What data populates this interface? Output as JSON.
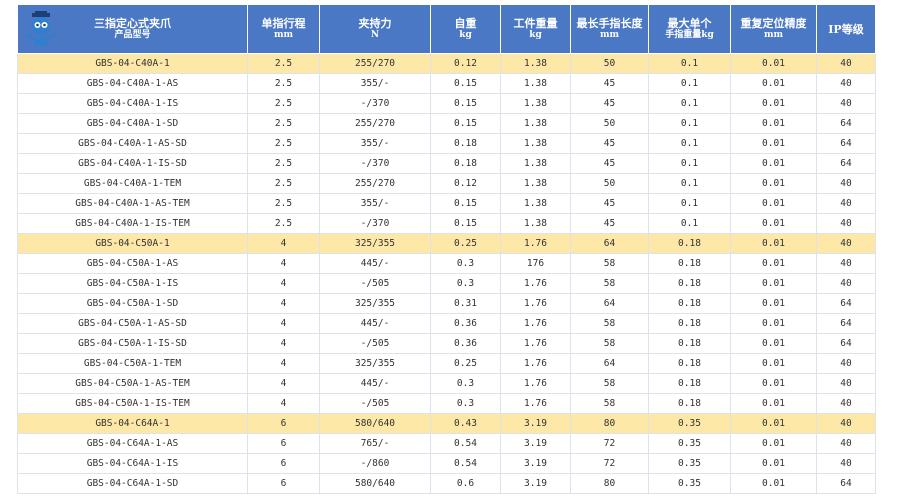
{
  "header": {
    "columns": [
      {
        "title": "三指定心式夹爪",
        "sub": "产品型号"
      },
      {
        "title": "单指行程",
        "sub": "mm"
      },
      {
        "title": "夹持力",
        "sub": "N"
      },
      {
        "title": "自重",
        "sub": "kg"
      },
      {
        "title": "工件重量",
        "sub": "kg"
      },
      {
        "title": "最长手指长度",
        "sub": "mm"
      },
      {
        "title": "最大单个",
        "sub": "手指重量kg"
      },
      {
        "title": "重复定位精度",
        "sub": "mm"
      },
      {
        "title": "IP等级",
        "sub": ""
      }
    ]
  },
  "rows": [
    {
      "hl": true,
      "cells": [
        "GBS-04-C40A-1",
        "2.5",
        "255/270",
        "0.12",
        "1.38",
        "50",
        "0.1",
        "0.01",
        "40"
      ]
    },
    {
      "hl": false,
      "cells": [
        "GBS-04-C40A-1-AS",
        "2.5",
        "355/-",
        "0.15",
        "1.38",
        "45",
        "0.1",
        "0.01",
        "40"
      ]
    },
    {
      "hl": false,
      "cells": [
        "GBS-04-C40A-1-IS",
        "2.5",
        "-/370",
        "0.15",
        "1.38",
        "45",
        "0.1",
        "0.01",
        "40"
      ]
    },
    {
      "hl": false,
      "cells": [
        "GBS-04-C40A-1-SD",
        "2.5",
        "255/270",
        "0.15",
        "1.38",
        "50",
        "0.1",
        "0.01",
        "64"
      ]
    },
    {
      "hl": false,
      "cells": [
        "GBS-04-C40A-1-AS-SD",
        "2.5",
        "355/-",
        "0.18",
        "1.38",
        "45",
        "0.1",
        "0.01",
        "64"
      ]
    },
    {
      "hl": false,
      "cells": [
        "GBS-04-C40A-1-IS-SD",
        "2.5",
        "-/370",
        "0.18",
        "1.38",
        "45",
        "0.1",
        "0.01",
        "64"
      ]
    },
    {
      "hl": false,
      "cells": [
        "GBS-04-C40A-1-TEM",
        "2.5",
        "255/270",
        "0.12",
        "1.38",
        "50",
        "0.1",
        "0.01",
        "40"
      ]
    },
    {
      "hl": false,
      "cells": [
        "GBS-04-C40A-1-AS-TEM",
        "2.5",
        "355/-",
        "0.15",
        "1.38",
        "45",
        "0.1",
        "0.01",
        "40"
      ]
    },
    {
      "hl": false,
      "cells": [
        "GBS-04-C40A-1-IS-TEM",
        "2.5",
        "-/370",
        "0.15",
        "1.38",
        "45",
        "0.1",
        "0.01",
        "40"
      ]
    },
    {
      "hl": true,
      "cells": [
        "GBS-04-C50A-1",
        "4",
        "325/355",
        "0.25",
        "1.76",
        "64",
        "0.18",
        "0.01",
        "40"
      ]
    },
    {
      "hl": false,
      "cells": [
        "GBS-04-C50A-1-AS",
        "4",
        "445/-",
        "0.3",
        "176",
        "58",
        "0.18",
        "0.01",
        "40"
      ]
    },
    {
      "hl": false,
      "cells": [
        "GBS-04-C50A-1-IS",
        "4",
        "-/505",
        "0.3",
        "1.76",
        "58",
        "0.18",
        "0.01",
        "40"
      ]
    },
    {
      "hl": false,
      "cells": [
        "GBS-04-C50A-1-SD",
        "4",
        "325/355",
        "0.31",
        "1.76",
        "64",
        "0.18",
        "0.01",
        "64"
      ]
    },
    {
      "hl": false,
      "cells": [
        "GBS-04-C50A-1-AS-SD",
        "4",
        "445/-",
        "0.36",
        "1.76",
        "58",
        "0.18",
        "0.01",
        "64"
      ]
    },
    {
      "hl": false,
      "cells": [
        "GBS-04-C50A-1-IS-SD",
        "4",
        "-/505",
        "0.36",
        "1.76",
        "58",
        "0.18",
        "0.01",
        "64"
      ]
    },
    {
      "hl": false,
      "cells": [
        "GBS-04-C50A-1-TEM",
        "4",
        "325/355",
        "0.25",
        "1.76",
        "64",
        "0.18",
        "0.01",
        "40"
      ]
    },
    {
      "hl": false,
      "cells": [
        "GBS-04-C50A-1-AS-TEM",
        "4",
        "445/-",
        "0.3",
        "1.76",
        "58",
        "0.18",
        "0.01",
        "40"
      ]
    },
    {
      "hl": false,
      "cells": [
        "GBS-04-C50A-1-IS-TEM",
        "4",
        "-/505",
        "0.3",
        "1.76",
        "58",
        "0.18",
        "0.01",
        "40"
      ]
    },
    {
      "hl": true,
      "cells": [
        "GBS-04-C64A-1",
        "6",
        "580/640",
        "0.43",
        "3.19",
        "80",
        "0.35",
        "0.01",
        "40"
      ]
    },
    {
      "hl": false,
      "cells": [
        "GBS-04-C64A-1-AS",
        "6",
        "765/-",
        "0.54",
        "3.19",
        "72",
        "0.35",
        "0.01",
        "40"
      ]
    },
    {
      "hl": false,
      "cells": [
        "GBS-04-C64A-1-IS",
        "6",
        "-/860",
        "0.54",
        "3.19",
        "72",
        "0.35",
        "0.01",
        "40"
      ]
    },
    {
      "hl": false,
      "cells": [
        "GBS-04-C64A-1-SD",
        "6",
        "580/640",
        "0.6",
        "3.19",
        "80",
        "0.35",
        "0.01",
        "64"
      ]
    }
  ],
  "colors": {
    "header_bg": "#4a78c4",
    "highlight_row": "#fde8a8",
    "logo": "#2f7fd0"
  },
  "logo_icon": "robot-mascot-icon"
}
